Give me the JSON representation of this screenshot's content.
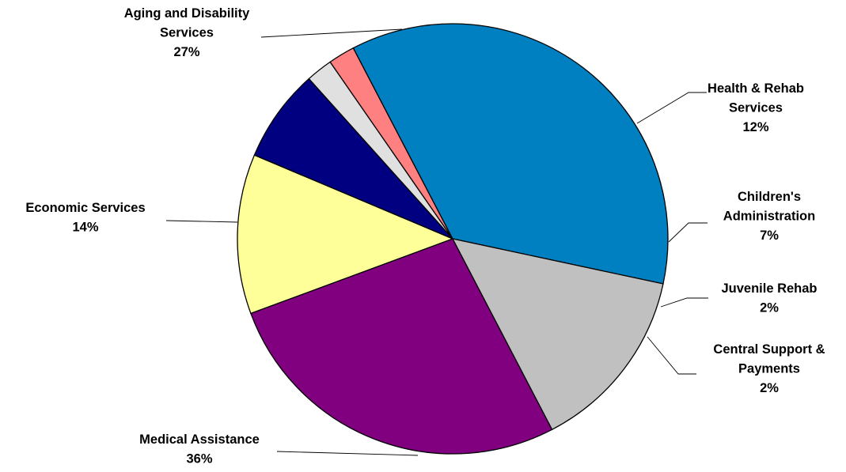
{
  "chart_data": {
    "type": "pie",
    "title": "",
    "slices": [
      {
        "label": [
          "Aging and Disability",
          "Services"
        ],
        "pct_text": "27%",
        "value": 27,
        "color": "#800080"
      },
      {
        "label": [
          "Health & Rehab",
          "Services"
        ],
        "pct_text": "12%",
        "value": 12,
        "color": "#ffff99"
      },
      {
        "label": [
          "Children's",
          "Administration"
        ],
        "pct_text": "7%",
        "value": 7,
        "color": "#000080"
      },
      {
        "label": [
          "Juvenile Rehab"
        ],
        "pct_text": "2%",
        "value": 2,
        "color": "#e0e0e0"
      },
      {
        "label": [
          "Central Support &",
          "Payments"
        ],
        "pct_text": "2%",
        "value": 2,
        "color": "#ff8080"
      },
      {
        "label": [
          "Medical Assistance"
        ],
        "pct_text": "36%",
        "value": 36,
        "color": "#0080c0"
      },
      {
        "label": [
          "Economic Services"
        ],
        "pct_text": "14%",
        "value": 14,
        "color": "#c0c0c0"
      }
    ]
  }
}
